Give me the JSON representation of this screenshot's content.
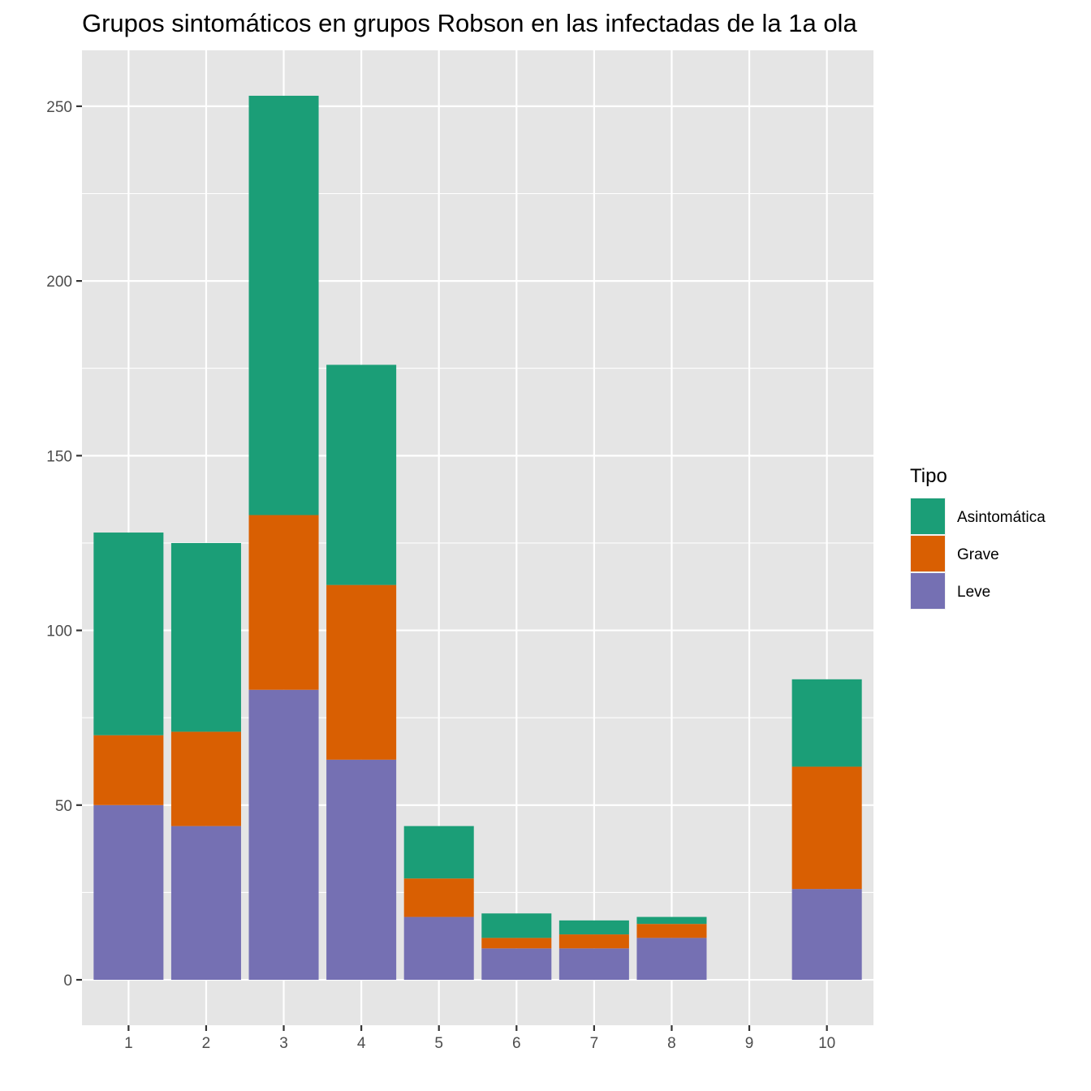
{
  "chart_data": {
    "type": "bar",
    "stacked": true,
    "title": "Grupos sintomáticos en grupos Robson en las infectadas de la 1a ola",
    "xlabel": "",
    "ylabel": "",
    "categories": [
      "1",
      "2",
      "3",
      "4",
      "5",
      "6",
      "7",
      "8",
      "9",
      "10"
    ],
    "series": [
      {
        "name": "Leve",
        "color": "#7570B3",
        "values": [
          50,
          44,
          83,
          63,
          18,
          9,
          9,
          12,
          0,
          26
        ]
      },
      {
        "name": "Grave",
        "color": "#D95F02",
        "values": [
          20,
          27,
          50,
          50,
          11,
          3,
          4,
          4,
          0,
          35
        ]
      },
      {
        "name": "Asintomática",
        "color": "#1B9E77",
        "values": [
          58,
          54,
          120,
          63,
          15,
          7,
          4,
          2,
          0,
          25
        ]
      }
    ],
    "ylim": [
      -13,
      266
    ],
    "y_ticks": [
      0,
      50,
      100,
      150,
      200,
      250
    ],
    "y_tick_labels": [
      "0",
      "50",
      "100",
      "150",
      "200",
      "250"
    ],
    "grid": true,
    "panel_background": "#E5E5E5",
    "legend": {
      "title": "Tipo",
      "position": "right",
      "items": [
        "Asintomática",
        "Grave",
        "Leve"
      ]
    }
  }
}
